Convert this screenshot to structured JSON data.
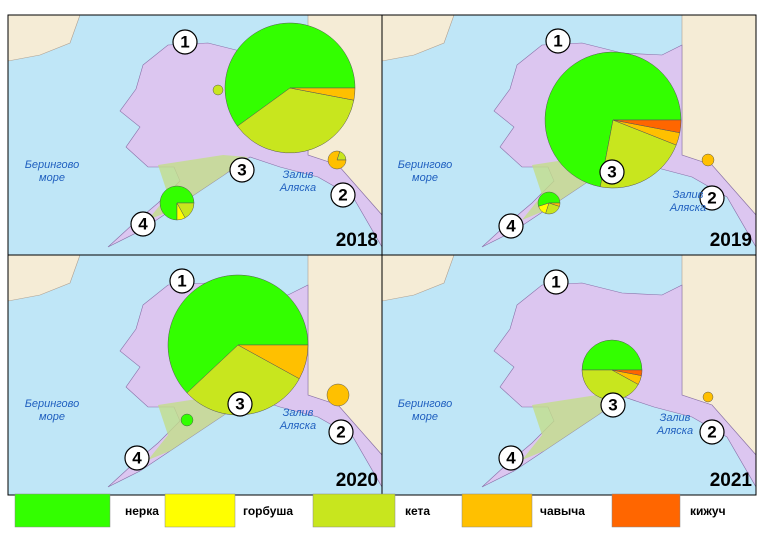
{
  "chart_data": {
    "type": "pie-map",
    "series": [
      {
        "name": "нерка",
        "color": "#33ff00"
      },
      {
        "name": "горбуша",
        "color": "#ffff00"
      },
      {
        "name": "кета",
        "color": "#c8e61e"
      },
      {
        "name": "чавыча",
        "color": "#ffc000"
      },
      {
        "name": "кижуч",
        "color": "#ff6600"
      }
    ],
    "region_labels": [
      "1",
      "2",
      "3",
      "4"
    ],
    "sea_label": [
      "Берингово",
      "море"
    ],
    "gulf_label": [
      "Залив",
      "Аляска"
    ],
    "panels": [
      {
        "year": "2018",
        "pies": [
          {
            "values": [
              60,
              0,
              37,
              3,
              0
            ],
            "size": 65
          },
          {
            "values": [
              0,
              0,
              100,
              0,
              0
            ],
            "size": 5
          },
          {
            "values": [
              0,
              0,
              20,
              80,
              0
            ],
            "size": 9
          },
          {
            "values": [
              75,
              8,
              17,
              0,
              0
            ],
            "size": 17
          }
        ]
      },
      {
        "year": "2019",
        "pies": [
          {
            "values": [
              72,
              0,
              22,
              3,
              3
            ],
            "size": 68
          },
          {
            "values": [
              0,
              0,
              0,
              100,
              0
            ],
            "size": 6
          },
          {
            "values": [
              55,
              15,
              25,
              5,
              0
            ],
            "size": 11
          }
        ]
      },
      {
        "year": "2020",
        "pies": [
          {
            "values": [
              62,
              0,
              30,
              8,
              0
            ],
            "size": 70
          },
          {
            "values": [
              0,
              0,
              0,
              100,
              0
            ],
            "size": 11
          },
          {
            "values": [
              100,
              0,
              0,
              0,
              0
            ],
            "size": 6
          }
        ]
      },
      {
        "year": "2021",
        "pies": [
          {
            "values": [
              50,
              0,
              42,
              5,
              3
            ],
            "size": 30
          },
          {
            "values": [
              0,
              0,
              0,
              100,
              0
            ],
            "size": 5
          }
        ]
      }
    ]
  }
}
